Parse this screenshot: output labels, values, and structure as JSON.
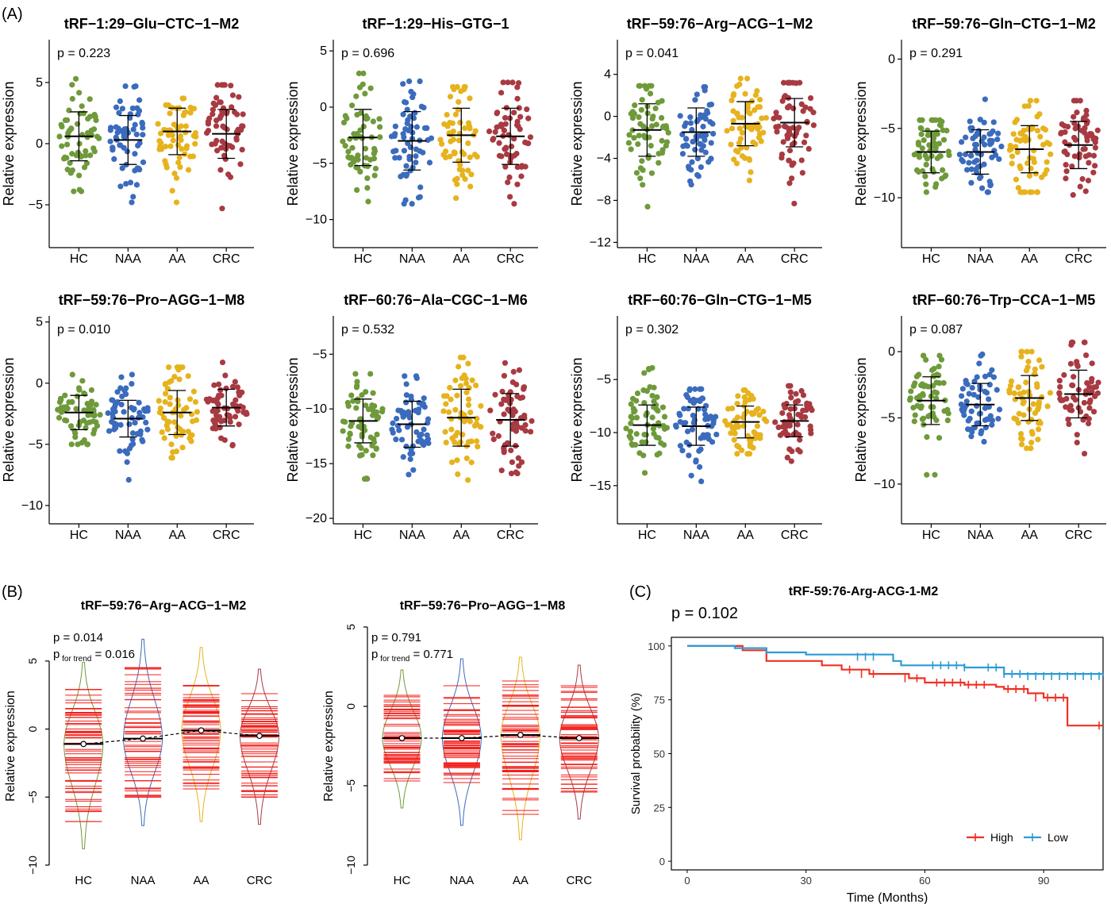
{
  "panel_labels": {
    "a": "(A)",
    "b": "(B)",
    "c": "(C)"
  },
  "group_colors": {
    "HC": "#6f9a3b",
    "NAA": "#3b6bbd",
    "AA": "#e6b31e",
    "CRC": "#a83a42"
  },
  "chart_data": [
    {
      "type": "scatter",
      "panel": "A",
      "title": "tRF−1:29−Glu−CTC−1−M2",
      "p_text": "p = 0.223",
      "xlabel": "",
      "ylabel": "Relative expression",
      "categories": [
        "HC",
        "NAA",
        "AA",
        "CRC"
      ],
      "ylim": [
        -8.5,
        8.5
      ],
      "yticks": [
        5,
        0,
        -5
      ],
      "ytick_labels": [
        "5",
        "0",
        "−5"
      ],
      "mean": [
        0.6,
        0.3,
        1.0,
        0.8
      ],
      "sd": [
        2.0,
        2.0,
        1.9,
        2.0
      ],
      "min": [
        -3.9,
        -4.8,
        -4.8,
        -5.3
      ],
      "max": [
        5.3,
        4.7,
        3.7,
        4.8
      ]
    },
    {
      "type": "scatter",
      "panel": "A",
      "title": "tRF−1:29−His−GTG−1",
      "p_text": "p = 0.696",
      "xlabel": "",
      "ylabel": "Relative expression",
      "categories": [
        "HC",
        "NAA",
        "AA",
        "CRC"
      ],
      "ylim": [
        -12.5,
        6
      ],
      "yticks": [
        5,
        0,
        -5,
        -10
      ],
      "ytick_labels": [
        "5",
        "0",
        "−5",
        "−10"
      ],
      "mean": [
        -2.7,
        -3.0,
        -2.5,
        -2.6
      ],
      "sd": [
        2.5,
        2.6,
        2.4,
        2.5
      ],
      "min": [
        -8.4,
        -8.6,
        -8.1,
        -8.6
      ],
      "max": [
        3.0,
        2.3,
        1.8,
        2.2
      ]
    },
    {
      "type": "scatter",
      "panel": "A",
      "title": "tRF−59:76−Arg−ACG−1−M2",
      "p_text": "p = 0.041",
      "xlabel": "",
      "ylabel": "Relative expression",
      "categories": [
        "HC",
        "NAA",
        "AA",
        "CRC"
      ],
      "ylim": [
        -12.5,
        7.3
      ],
      "yticks": [
        4,
        0,
        -4,
        -8,
        -12
      ],
      "ytick_labels": [
        "4",
        "0",
        "−4",
        "−8",
        "−12"
      ],
      "mean": [
        -1.3,
        -1.5,
        -0.7,
        -0.6
      ],
      "sd": [
        2.5,
        2.3,
        2.1,
        2.3
      ],
      "min": [
        -8.6,
        -6.5,
        -6.1,
        -8.3
      ],
      "max": [
        2.9,
        2.8,
        3.6,
        3.2
      ]
    },
    {
      "type": "scatter",
      "panel": "A",
      "title": "tRF−59:76−Gln−CTG−1−M2",
      "p_text": "p = 0.291",
      "xlabel": "",
      "ylabel": "Relative expression",
      "categories": [
        "HC",
        "NAA",
        "AA",
        "CRC"
      ],
      "ylim": [
        -13.6,
        1.4
      ],
      "yticks": [
        0,
        -5,
        -10
      ],
      "ytick_labels": [
        "0",
        "−5",
        "−10"
      ],
      "mean": [
        -6.7,
        -6.7,
        -6.5,
        -6.2
      ],
      "sd": [
        1.5,
        1.6,
        1.7,
        1.7
      ],
      "min": [
        -9.6,
        -9.6,
        -9.6,
        -9.8
      ],
      "max": [
        -4.4,
        -2.9,
        -3.0,
        -3.0
      ]
    },
    {
      "type": "scatter",
      "panel": "A",
      "title": "tRF−59:76−Pro−AGG−1−M8",
      "p_text": "p = 0.010",
      "xlabel": "",
      "ylabel": "Relative expression",
      "categories": [
        "HC",
        "NAA",
        "AA",
        "CRC"
      ],
      "ylim": [
        -11.5,
        5.5
      ],
      "yticks": [
        5,
        0,
        -5,
        -10
      ],
      "ytick_labels": [
        "5",
        "0",
        "−5",
        "−10"
      ],
      "mean": [
        -2.4,
        -2.9,
        -2.4,
        -2.0
      ],
      "sd": [
        1.4,
        1.5,
        1.8,
        1.5
      ],
      "min": [
        -5.0,
        -7.9,
        -6.1,
        -5.1
      ],
      "max": [
        0.7,
        0.7,
        1.3,
        1.7
      ]
    },
    {
      "type": "scatter",
      "panel": "A",
      "title": "tRF−60:76−Ala−CGC−1−M6",
      "p_text": "p = 0.532",
      "xlabel": "",
      "ylabel": "Relative expression",
      "categories": [
        "HC",
        "NAA",
        "AA",
        "CRC"
      ],
      "ylim": [
        -20.5,
        -1.5
      ],
      "yticks": [
        -5,
        -10,
        -15,
        -20
      ],
      "ytick_labels": [
        "−5",
        "−10",
        "−15",
        "−20"
      ],
      "mean": [
        -11.1,
        -11.4,
        -10.8,
        -11.0
      ],
      "sd": [
        2.0,
        2.1,
        2.6,
        2.4
      ],
      "min": [
        -16.4,
        -16.0,
        -16.5,
        -15.9
      ],
      "max": [
        -6.8,
        -7.0,
        -5.3,
        -5.8
      ]
    },
    {
      "type": "scatter",
      "panel": "A",
      "title": "tRF−60:76−Gln−CTG−1−M5",
      "p_text": "p = 0.302",
      "xlabel": "",
      "ylabel": "Relative expression",
      "categories": [
        "HC",
        "NAA",
        "AA",
        "CRC"
      ],
      "ylim": [
        -18.6,
        1.0
      ],
      "yticks": [
        -5,
        -10,
        -15
      ],
      "ytick_labels": [
        "−5",
        "−10",
        "−15"
      ],
      "mean": [
        -9.3,
        -9.4,
        -9.0,
        -8.9
      ],
      "sd": [
        1.9,
        1.8,
        1.5,
        1.5
      ],
      "min": [
        -13.8,
        -14.6,
        -12.0,
        -12.7
      ],
      "max": [
        -3.9,
        -5.9,
        -6.0,
        -5.6
      ]
    },
    {
      "type": "scatter",
      "panel": "A",
      "title": "tRF−60:76−Trp−CCA−1−M5",
      "p_text": "p = 0.087",
      "xlabel": "",
      "ylabel": "Relative expression",
      "categories": [
        "HC",
        "NAA",
        "AA",
        "CRC"
      ],
      "ylim": [
        -13.0,
        2.7
      ],
      "yticks": [
        0,
        -5,
        -10
      ],
      "ytick_labels": [
        "0",
        "−5",
        "−10"
      ],
      "mean": [
        -3.7,
        -4.0,
        -3.5,
        -3.2
      ],
      "sd": [
        1.8,
        1.6,
        1.7,
        1.8
      ],
      "min": [
        -9.3,
        -6.8,
        -7.3,
        -7.7
      ],
      "max": [
        -0.3,
        -0.2,
        0.0,
        0.7
      ]
    },
    {
      "type": "violin",
      "panel": "B",
      "title": "tRF−59:76−Arg−ACG−1−M2",
      "p_text": "p = 0.014",
      "ptrend_value": " = 0.016",
      "xlabel": "",
      "ylabel": "Relative expression",
      "categories": [
        "HC",
        "NAA",
        "AA",
        "CRC"
      ],
      "ylim": [
        -10,
        7.5
      ],
      "yticks": [
        5,
        0,
        -5,
        -10
      ],
      "ytick_labels": [
        "5",
        "0",
        "−5",
        "−10"
      ],
      "mean": [
        -1.1,
        -0.7,
        -0.1,
        -0.5
      ],
      "min": [
        -8.8,
        -7.1,
        -6.8,
        -7.0
      ],
      "max": [
        4.9,
        6.6,
        6.0,
        4.4
      ],
      "rug_min": [
        -6.8,
        -5.0,
        -4.4,
        -5.0
      ],
      "rug_max": [
        2.9,
        4.5,
        3.2,
        2.6
      ]
    },
    {
      "type": "violin",
      "panel": "B",
      "title": "tRF−59:76−Pro−AGG−1−M8",
      "p_text": "p = 0.791",
      "ptrend_value": " = 0.771",
      "xlabel": "",
      "ylabel": "Relative expression",
      "categories": [
        "HC",
        "NAA",
        "AA",
        "CRC"
      ],
      "ylim": [
        -10,
        5
      ],
      "yticks": [
        5,
        0,
        -5,
        -10
      ],
      "ytick_labels": [
        "5",
        "0",
        "−5",
        "−10"
      ],
      "mean": [
        -2.0,
        -2.0,
        -1.8,
        -2.0
      ],
      "min": [
        -6.4,
        -7.5,
        -8.4,
        -7.1
      ],
      "max": [
        2.3,
        3.0,
        3.1,
        2.6
      ],
      "rug_min": [
        -4.7,
        -4.8,
        -6.8,
        -5.4
      ],
      "rug_max": [
        0.7,
        1.3,
        1.6,
        1.3
      ]
    },
    {
      "type": "line",
      "panel": "C",
      "title": "tRF-59:76-Arg-ACG-1-M2",
      "p_text": "p = 0.102",
      "xlabel": "Time (Months)",
      "ylabel": "Survival probability (%)",
      "xlim": [
        -4,
        105
      ],
      "ylim": [
        -4,
        104
      ],
      "xticks": [
        0,
        30,
        60,
        90
      ],
      "xtick_labels": [
        "0",
        "30",
        "60",
        "90"
      ],
      "yticks": [
        0,
        25,
        50,
        75,
        100
      ],
      "ytick_labels": [
        "0",
        "25",
        "50",
        "75",
        "100"
      ],
      "legend": "bottom-right",
      "series": [
        {
          "name": "High",
          "color": "#ee3124",
          "x": [
            0,
            14,
            20,
            30,
            34,
            39,
            46,
            56,
            60,
            62,
            66,
            70,
            78,
            80,
            86,
            90,
            96,
            105
          ],
          "y": [
            100,
            98,
            93,
            93,
            91,
            89,
            87,
            85,
            83,
            83,
            83,
            82,
            81,
            80,
            78,
            76,
            63,
            63
          ],
          "censor_x": [
            41,
            44,
            47,
            55,
            58,
            63,
            65,
            67,
            69,
            71,
            73,
            75,
            81,
            83,
            85,
            88,
            91,
            93,
            95,
            104
          ],
          "censor_y": [
            89,
            87,
            87,
            85,
            85,
            83,
            83,
            83,
            83,
            82,
            82,
            82,
            80,
            80,
            80,
            76,
            76,
            76,
            76,
            63
          ]
        },
        {
          "name": "Low",
          "color": "#2d9bd6",
          "x": [
            0,
            12,
            20,
            30,
            52,
            54,
            70,
            80,
            105
          ],
          "y": [
            100,
            99,
            97,
            96,
            93,
            91,
            90,
            87,
            86
          ],
          "censor_x": [
            43,
            45,
            47,
            62,
            64,
            66,
            68,
            70,
            76,
            78,
            80,
            82,
            84,
            86,
            88,
            90,
            92,
            94,
            96,
            98,
            100,
            102,
            104
          ],
          "censor_y": [
            95,
            95,
            95,
            91,
            91,
            91,
            91,
            90,
            90,
            90,
            87,
            87,
            87,
            86,
            86,
            86,
            86,
            86,
            86,
            86,
            86,
            86,
            86
          ]
        }
      ]
    }
  ]
}
